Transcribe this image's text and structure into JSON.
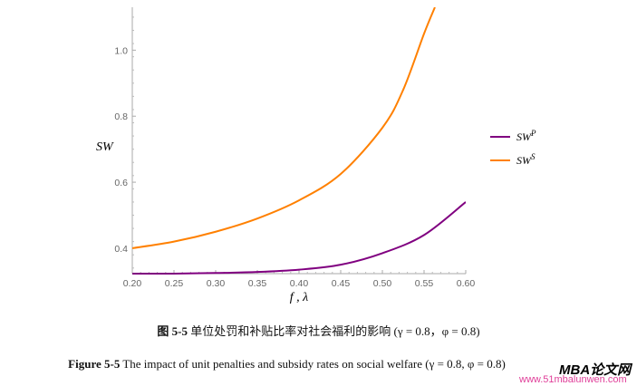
{
  "chart_data": {
    "type": "line",
    "xlabel": "f , λ",
    "ylabel": "SW",
    "xlim": [
      0.2,
      0.6
    ],
    "ylim": [
      0.323,
      1.13
    ],
    "xticks": [
      "0.20",
      "0.25",
      "0.30",
      "0.35",
      "0.40",
      "0.45",
      "0.50",
      "0.55",
      "0.60"
    ],
    "yticks": [
      "0.4",
      "0.6",
      "0.8",
      "1.0"
    ],
    "legend_position": "right",
    "series": [
      {
        "name": "SW^P",
        "label_base": "SW",
        "label_sup": "P",
        "color": "#800080",
        "x": [
          0.2,
          0.25,
          0.3,
          0.35,
          0.4,
          0.45,
          0.5,
          0.55,
          0.6
        ],
        "y": [
          0.323,
          0.323,
          0.325,
          0.328,
          0.335,
          0.35,
          0.385,
          0.44,
          0.54
        ]
      },
      {
        "name": "SW^S",
        "label_base": "SW",
        "label_sup": "S",
        "color": "#ff8000",
        "x": [
          0.2,
          0.25,
          0.3,
          0.35,
          0.4,
          0.45,
          0.5,
          0.525,
          0.55,
          0.563
        ],
        "y": [
          0.4,
          0.42,
          0.45,
          0.49,
          0.545,
          0.625,
          0.765,
          0.88,
          1.05,
          1.13
        ]
      }
    ]
  },
  "caption_cn": {
    "label": "图 5-5",
    "text": " 单位处罚和补贴比率对社会福利的影响 (γ = 0.8，φ = 0.8)"
  },
  "caption_en": {
    "label": "Figure 5-5",
    "text": " The impact of unit penalties and subsidy rates on social welfare (γ = 0.8, φ = 0.8)"
  },
  "watermark": {
    "brand": "MBA论文网",
    "url": "www.51mbalunwen.com"
  }
}
